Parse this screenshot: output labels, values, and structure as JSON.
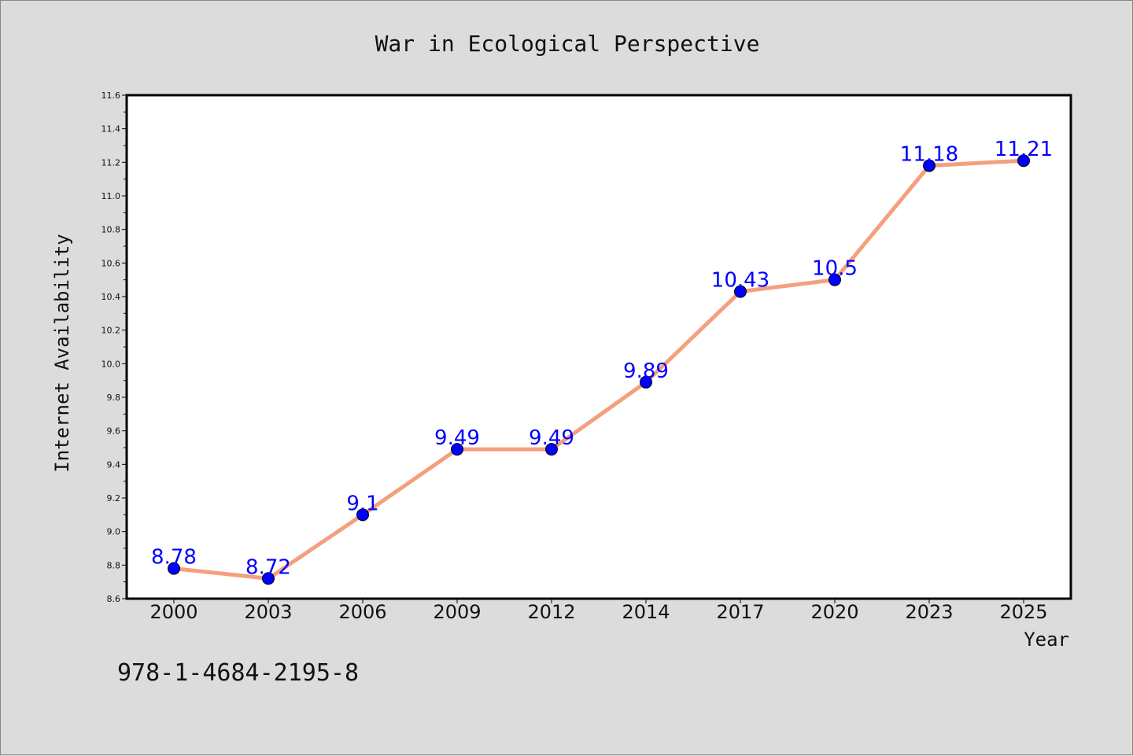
{
  "footer": {
    "isbn": "978-1-4684-2195-8"
  },
  "chart_data": {
    "type": "line",
    "title": "War in Ecological Perspective",
    "xlabel": "Year",
    "ylabel": "Internet Availability",
    "categories": [
      "2000",
      "2003",
      "2006",
      "2009",
      "2012",
      "2014",
      "2017",
      "2020",
      "2023",
      "2025"
    ],
    "values": [
      8.78,
      8.72,
      9.1,
      9.49,
      9.49,
      9.89,
      10.43,
      10.5,
      11.18,
      11.21
    ],
    "data_labels": [
      "8.78",
      "8.72",
      "9.1",
      "9.49",
      "9.49",
      "9.89",
      "10.43",
      "10.5",
      "11.18",
      "11.21"
    ],
    "ylim": [
      8.6,
      11.6
    ],
    "yticks": [
      "8.6",
      "8.8",
      "9.0",
      "9.2",
      "9.4",
      "9.6",
      "9.8",
      "10.0",
      "10.2",
      "10.4",
      "10.6",
      "10.8",
      "11.0",
      "11.2",
      "11.4",
      "11.6"
    ],
    "grid": false,
    "colors": {
      "line": "#f4a07e",
      "marker": "#0000ff",
      "label": "#0000ff",
      "background": "#dcdcdc",
      "plot_background": "#ffffff"
    }
  }
}
